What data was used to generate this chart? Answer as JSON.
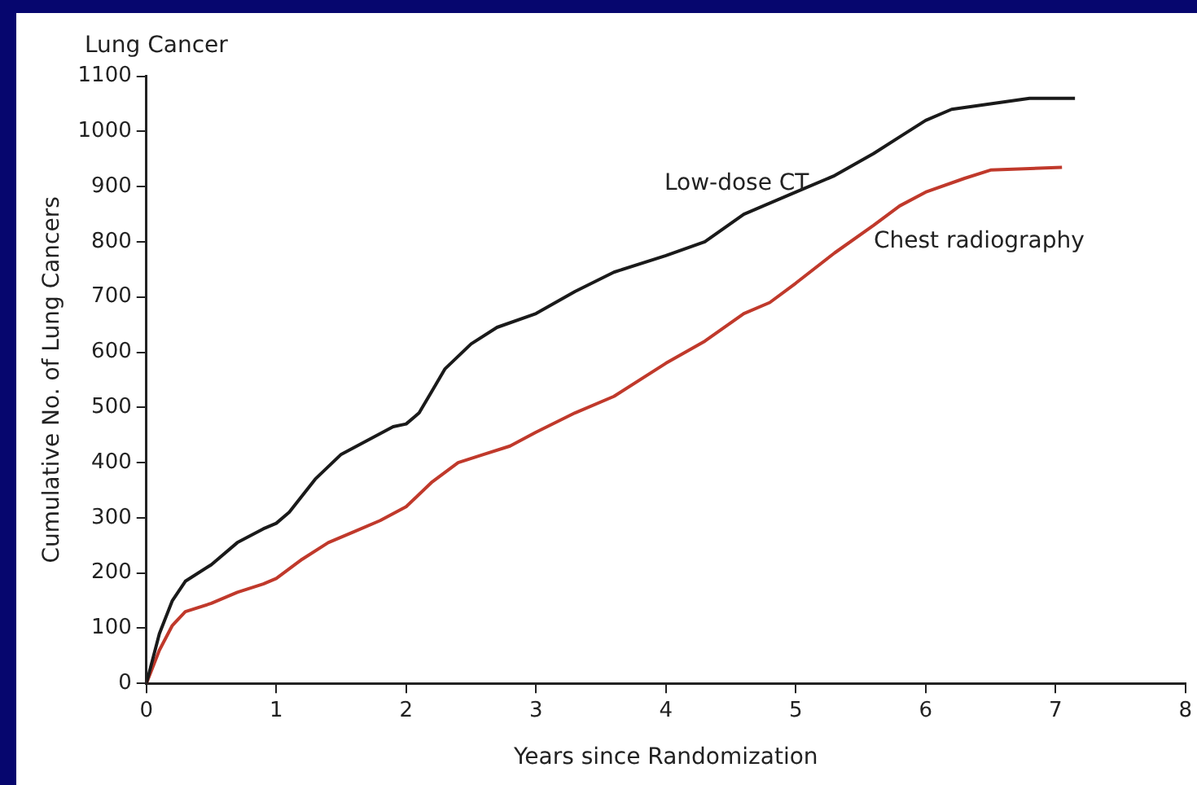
{
  "chart_data": {
    "type": "line",
    "title": "Lung Cancer",
    "xlabel": "Years since Randomization",
    "ylabel": "Cumulative No. of Lung Cancers",
    "xlim": [
      0,
      8
    ],
    "xticks": [
      0,
      1,
      2,
      3,
      4,
      5,
      6,
      7,
      8
    ],
    "ylim": [
      0,
      1100
    ],
    "yticks": [
      0,
      100,
      200,
      300,
      400,
      500,
      600,
      700,
      800,
      900,
      1000,
      1100
    ],
    "grid": false,
    "legend": false,
    "marker": "none",
    "line_style": "solid",
    "series": [
      {
        "name": "Low-dose CT",
        "color": "#1a1a1a",
        "x": [
          0,
          0.1,
          0.2,
          0.3,
          0.5,
          0.7,
          0.9,
          1.0,
          1.1,
          1.3,
          1.5,
          1.7,
          1.9,
          2.0,
          2.1,
          2.2,
          2.3,
          2.5,
          2.7,
          3.0,
          3.3,
          3.6,
          4.0,
          4.3,
          4.6,
          5.0,
          5.3,
          5.6,
          5.8,
          6.0,
          6.2,
          6.5,
          6.8,
          7.15
        ],
        "values": [
          0,
          90,
          150,
          185,
          215,
          255,
          280,
          290,
          310,
          370,
          415,
          440,
          465,
          470,
          490,
          530,
          570,
          615,
          645,
          670,
          710,
          745,
          775,
          800,
          850,
          890,
          920,
          960,
          990,
          1020,
          1040,
          1050,
          1060,
          1060
        ]
      },
      {
        "name": "Chest radiography",
        "color": "#c0392b",
        "x": [
          0,
          0.1,
          0.2,
          0.3,
          0.5,
          0.7,
          0.9,
          1.0,
          1.2,
          1.4,
          1.6,
          1.8,
          2.0,
          2.2,
          2.4,
          2.6,
          2.8,
          3.0,
          3.3,
          3.6,
          4.0,
          4.3,
          4.6,
          4.8,
          5.0,
          5.3,
          5.6,
          5.8,
          6.0,
          6.3,
          6.5,
          7.05
        ],
        "values": [
          0,
          60,
          105,
          130,
          145,
          165,
          180,
          190,
          225,
          255,
          275,
          295,
          320,
          365,
          400,
          415,
          430,
          455,
          490,
          520,
          580,
          620,
          670,
          690,
          725,
          780,
          830,
          865,
          890,
          915,
          930,
          935
        ]
      }
    ]
  }
}
